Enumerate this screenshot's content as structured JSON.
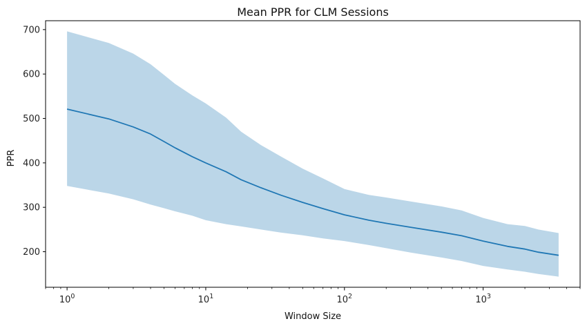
{
  "chart_data": {
    "type": "area",
    "title": "Mean PPR for CLM Sessions",
    "xlabel": "Window Size",
    "ylabel": "PPR",
    "xscale": "log",
    "xlim": [
      0.7,
      5000
    ],
    "ylim": [
      120,
      720
    ],
    "grid": false,
    "legend": "none",
    "x_ticks": [
      {
        "value": 1,
        "base": "10",
        "exp": "0"
      },
      {
        "value": 10,
        "base": "10",
        "exp": "1"
      },
      {
        "value": 100,
        "base": "10",
        "exp": "2"
      },
      {
        "value": 1000,
        "base": "10",
        "exp": "3"
      }
    ],
    "y_ticks": [
      200,
      300,
      400,
      500,
      600,
      700
    ],
    "colors": {
      "line": "#1f77b4",
      "band": "#1f77b4"
    },
    "x": [
      1,
      2,
      3,
      4,
      5,
      6,
      8,
      10,
      14,
      18,
      25,
      35,
      50,
      70,
      100,
      150,
      200,
      300,
      500,
      700,
      1000,
      1500,
      2000,
      2500,
      3500
    ],
    "series": [
      {
        "mean": [
          521,
          499,
          481,
          465,
          448,
          434,
          414,
          400,
          380,
          362,
          344,
          327,
          311,
          297,
          283,
          271,
          264,
          255,
          244,
          236,
          224,
          212,
          206,
          199,
          192
        ]
      }
    ],
    "band": {
      "upper": [
        696,
        670,
        646,
        622,
        598,
        578,
        552,
        534,
        502,
        470,
        440,
        414,
        387,
        365,
        341,
        328,
        322,
        313,
        302,
        293,
        276,
        262,
        258,
        250,
        242
      ],
      "lower": [
        348,
        331,
        318,
        306,
        298,
        291,
        281,
        271,
        262,
        257,
        250,
        243,
        237,
        230,
        224,
        215,
        208,
        198,
        187,
        179,
        168,
        160,
        155,
        150,
        144
      ]
    }
  }
}
